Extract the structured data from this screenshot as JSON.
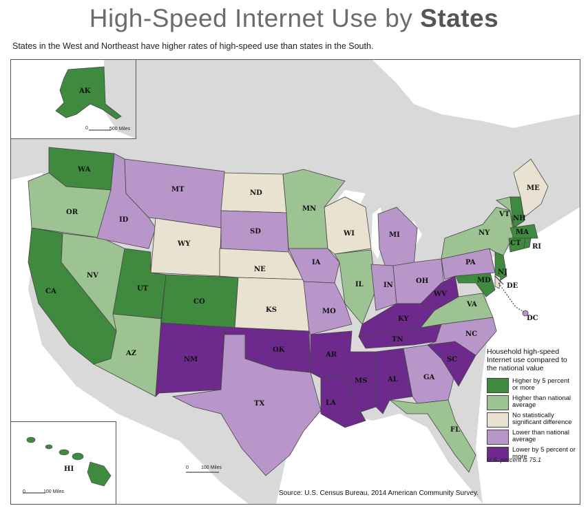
{
  "header": {
    "title_main": "High-Speed Internet Use by ",
    "title_bold": "States",
    "subtitle": "States in the West and Northeast have higher rates of high-speed use than states in the South."
  },
  "colors": {
    "higher5": "#3f8a3f",
    "higher": "#9dc393",
    "nodiff": "#e9e2d0",
    "lower": "#b896c9",
    "lower5": "#6d2a8c",
    "land": "#d9d9d9",
    "water": "#ffffff"
  },
  "legend": {
    "title": "Household high-speed Internet use compared to the national value",
    "items": [
      {
        "key": "higher5",
        "label": "Higher by 5 percent or more"
      },
      {
        "key": "higher",
        "label": "Higher than national average"
      },
      {
        "key": "nodiff",
        "label": "No statistically significant difference"
      },
      {
        "key": "lower",
        "label": "Lower than national average"
      },
      {
        "key": "lower5",
        "label": "Lower by 5 percent or more"
      }
    ],
    "note": "U.S. percent is 75.1"
  },
  "scales": {
    "alaska": "500 Miles",
    "hawaii": "100 Miles",
    "main": "100 Miles",
    "zero": "0"
  },
  "states": {
    "AK": "higher5",
    "WA": "higher5",
    "OR": "higher",
    "CA": "higher5",
    "NV": "higher",
    "ID": "lower",
    "MT": "lower",
    "WY": "nodiff",
    "UT": "higher5",
    "AZ": "higher",
    "CO": "higher5",
    "NM": "lower5",
    "ND": "nodiff",
    "SD": "lower",
    "NE": "nodiff",
    "KS": "nodiff",
    "OK": "lower5",
    "TX": "lower",
    "MN": "higher",
    "IA": "lower",
    "MO": "lower",
    "AR": "lower5",
    "LA": "lower5",
    "WI": "nodiff",
    "IL": "higher",
    "MI": "lower",
    "IN": "lower",
    "OH": "lower",
    "KY": "lower5",
    "TN": "lower5",
    "MS": "lower5",
    "AL": "lower5",
    "GA": "lower",
    "FL": "higher",
    "SC": "lower5",
    "NC": "lower",
    "VA": "higher",
    "WV": "lower5",
    "PA": "lower",
    "NY": "higher",
    "VT": "higher",
    "NH": "higher5",
    "ME": "nodiff",
    "MA": "higher5",
    "CT": "higher5",
    "RI": "higher5",
    "NJ": "higher5",
    "DE": "nodiff",
    "MD": "higher5",
    "DC": "lower",
    "HI": "higher5"
  },
  "source": "Source: U.S. Census Bureau, 2014 American Community Survey."
}
